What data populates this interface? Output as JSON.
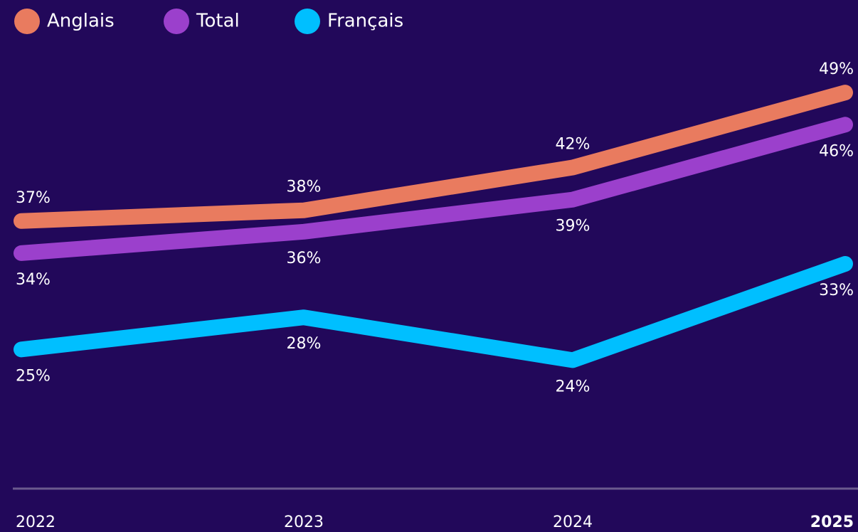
{
  "chart_data": {
    "type": "line",
    "categories": [
      "2022",
      "2023",
      "2024",
      "2025"
    ],
    "series": [
      {
        "name": "Anglais",
        "color": "#e97b5f",
        "values": [
          37,
          38,
          42,
          49
        ],
        "value_labels": [
          "37%",
          "38%",
          "42%",
          "49%"
        ]
      },
      {
        "name": "Total",
        "color": "#9b40cc",
        "values": [
          34,
          36,
          39,
          46
        ],
        "value_labels": [
          "34%",
          "36%",
          "39%",
          "46%"
        ]
      },
      {
        "name": "Français",
        "color": "#00bfff",
        "values": [
          25,
          28,
          24,
          33
        ],
        "value_labels": [
          "25%",
          "28%",
          "24%",
          "33%"
        ]
      }
    ],
    "ylim": [
      12,
      52
    ],
    "grid": false
  }
}
